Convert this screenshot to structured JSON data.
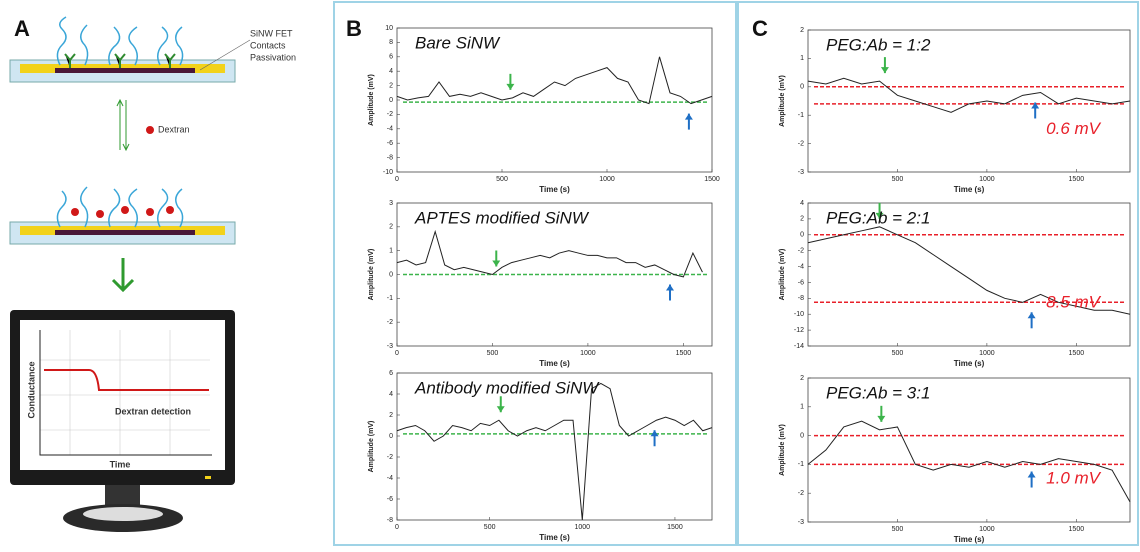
{
  "diagram": {
    "panel_a": "A",
    "panel_b": "B",
    "panel_c": "C",
    "labels": [
      "SiNW FET",
      "Contacts",
      "Passivation"
    ],
    "dextran": "Dextran",
    "monitor": {
      "ylabel": "Conductance",
      "xlabel": "Time",
      "caption": "Dextran detection"
    }
  },
  "chart_data": [
    {
      "type": "line",
      "annotation": "Bare SiNW",
      "xlabel": "Time (s)",
      "ylabel": "Amplitude (mV)",
      "x": [
        0,
        50,
        100,
        150,
        200,
        250,
        300,
        350,
        400,
        450,
        500,
        550,
        600,
        650,
        700,
        750,
        800,
        850,
        900,
        950,
        1000,
        1050,
        1100,
        1150,
        1200,
        1250,
        1300,
        1350,
        1400,
        1450,
        1500
      ],
      "values": [
        0.5,
        0,
        0.3,
        0.5,
        2.5,
        0.5,
        0.8,
        0.5,
        1,
        0.5,
        0,
        0.3,
        1,
        0.5,
        1.5,
        2.5,
        2,
        3,
        3.5,
        4,
        4.5,
        3,
        2.5,
        0,
        -0.5,
        6,
        1,
        0.5,
        -0.5,
        0,
        0.5
      ],
      "color": "#222222",
      "xlim": [
        0,
        1500
      ],
      "ylim": [
        -10,
        10
      ],
      "xticks": [
        0,
        500,
        1000,
        1500
      ],
      "yticks": [
        -10,
        -8,
        -6,
        -4,
        -2,
        0,
        2,
        4,
        6,
        8,
        10
      ],
      "hlines": [
        {
          "value": -0.3,
          "color": "#3cb44b"
        }
      ],
      "arrows": [
        {
          "x": 540,
          "color": "#3cb44b",
          "direction": "down"
        },
        {
          "x": 1390,
          "color": "#1f6fc5",
          "direction": "up"
        }
      ]
    },
    {
      "type": "line",
      "annotation": "APTES modified SiNW",
      "xlabel": "Time (s)",
      "ylabel": "Amplitude (mV)",
      "x": [
        0,
        50,
        100,
        150,
        200,
        250,
        300,
        350,
        400,
        450,
        500,
        550,
        600,
        650,
        700,
        750,
        800,
        850,
        900,
        950,
        1000,
        1050,
        1100,
        1150,
        1200,
        1250,
        1300,
        1350,
        1400,
        1450,
        1500,
        1550,
        1600
      ],
      "values": [
        0.5,
        0.6,
        0.4,
        0.5,
        1.8,
        0.4,
        0.2,
        0.3,
        0.2,
        0.1,
        0,
        0.3,
        0.5,
        0.6,
        0.7,
        0.8,
        0.7,
        0.9,
        1.0,
        0.9,
        0.8,
        0.8,
        0.7,
        0.7,
        0.5,
        0.5,
        0.3,
        0.4,
        0.2,
        0,
        -0.1,
        0.9,
        0.1
      ],
      "color": "#222222",
      "xlim": [
        0,
        1650
      ],
      "ylim": [
        -3,
        3
      ],
      "xticks": [
        0,
        500,
        1000,
        1500
      ],
      "yticks": [
        -3,
        -2,
        -1,
        0,
        1,
        2,
        3
      ],
      "hlines": [
        {
          "value": 0,
          "color": "#3cb44b"
        }
      ],
      "arrows": [
        {
          "x": 520,
          "color": "#3cb44b",
          "direction": "down"
        },
        {
          "x": 1430,
          "color": "#1f6fc5",
          "direction": "up"
        }
      ]
    },
    {
      "type": "line",
      "annotation": "Antibody modified SiNW",
      "xlabel": "Time (s)",
      "ylabel": "Amplitude (mV)",
      "x": [
        0,
        50,
        100,
        150,
        200,
        250,
        300,
        350,
        400,
        450,
        500,
        550,
        600,
        650,
        700,
        750,
        800,
        850,
        900,
        950,
        1000,
        1050,
        1100,
        1150,
        1200,
        1250,
        1300,
        1350,
        1400,
        1450,
        1500,
        1550,
        1600,
        1650,
        1700
      ],
      "values": [
        0.5,
        0.8,
        1,
        0.5,
        -0.5,
        0,
        1,
        0.8,
        0.5,
        1.2,
        1,
        1.5,
        0.5,
        0,
        0.5,
        0.8,
        0.5,
        1,
        1.5,
        1.5,
        -8,
        4.5,
        5,
        4.5,
        1,
        0,
        0.5,
        1,
        1.5,
        1.8,
        1.5,
        1,
        1.5,
        0.5,
        0.8
      ],
      "color": "#222222",
      "xlim": [
        0,
        1700
      ],
      "ylim": [
        -8,
        6
      ],
      "xticks": [
        0,
        500,
        1000,
        1500
      ],
      "yticks": [
        -8,
        -6,
        -4,
        -2,
        0,
        2,
        4,
        6
      ],
      "hlines": [
        {
          "value": 0.2,
          "color": "#3cb44b"
        }
      ],
      "arrows": [
        {
          "x": 560,
          "color": "#3cb44b",
          "direction": "down"
        },
        {
          "x": 1390,
          "color": "#1f6fc5",
          "direction": "up"
        }
      ]
    },
    {
      "type": "line",
      "annotation": "PEG:Ab = 1:2",
      "note": "0.6 mV",
      "note_color": "#e8202a",
      "xlabel": "Time (s)",
      "ylabel": "Amplitude (mV)",
      "x": [
        0,
        100,
        200,
        300,
        400,
        500,
        600,
        700,
        800,
        900,
        1000,
        1100,
        1200,
        1300,
        1400,
        1500,
        1600,
        1700,
        1800
      ],
      "values": [
        0.2,
        0.1,
        0.3,
        0.1,
        0.2,
        -0.3,
        -0.5,
        -0.7,
        -0.9,
        -0.6,
        -0.5,
        -0.6,
        -0.3,
        -0.2,
        -0.6,
        -0.4,
        -0.5,
        -0.6,
        -0.5
      ],
      "color": "#222222",
      "xlim": [
        0,
        1800
      ],
      "ylim": [
        -3,
        2
      ],
      "xticks": [
        500,
        1000,
        1500
      ],
      "yticks": [
        -3,
        -2,
        -1,
        0,
        1,
        2
      ],
      "hlines": [
        {
          "value": 0,
          "color": "#e8202a"
        },
        {
          "value": -0.6,
          "color": "#e8202a"
        }
      ],
      "arrows": [
        {
          "x": 430,
          "color": "#3cb44b",
          "direction": "down"
        },
        {
          "x": 1270,
          "color": "#1f6fc5",
          "direction": "up"
        }
      ]
    },
    {
      "type": "line",
      "annotation": "PEG:Ab = 2:1",
      "note": "8.5 mV",
      "note_color": "#e8202a",
      "xlabel": "Time (s)",
      "ylabel": "Amplitude (mV)",
      "x": [
        0,
        100,
        200,
        300,
        400,
        500,
        600,
        700,
        800,
        900,
        1000,
        1100,
        1200,
        1300,
        1400,
        1500,
        1600,
        1700,
        1800
      ],
      "values": [
        -1,
        -0.5,
        0,
        0.5,
        1,
        0,
        -1,
        -2.5,
        -4,
        -5.5,
        -7,
        -8,
        -8.5,
        -7.5,
        -8.5,
        -9,
        -9.5,
        -9.5,
        -10
      ],
      "color": "#222222",
      "xlim": [
        0,
        1800
      ],
      "ylim": [
        -14,
        4
      ],
      "xticks": [
        500,
        1000,
        1500
      ],
      "yticks": [
        -14,
        -12,
        -10,
        -8,
        -6,
        -4,
        -2,
        0,
        2,
        4
      ],
      "hlines": [
        {
          "value": 0,
          "color": "#e8202a"
        },
        {
          "value": -8.5,
          "color": "#e8202a"
        }
      ],
      "arrows": [
        {
          "x": 400,
          "color": "#3cb44b",
          "direction": "down"
        },
        {
          "x": 1250,
          "color": "#1f6fc5",
          "direction": "up"
        }
      ]
    },
    {
      "type": "line",
      "annotation": "PEG:Ab = 3:1",
      "note": "1.0 mV",
      "note_color": "#e8202a",
      "xlabel": "Time (s)",
      "ylabel": "Amplitude (mV)",
      "x": [
        0,
        100,
        200,
        300,
        400,
        500,
        600,
        700,
        800,
        900,
        1000,
        1100,
        1200,
        1300,
        1400,
        1500,
        1600,
        1700,
        1800
      ],
      "values": [
        -1,
        -0.5,
        0.3,
        0.5,
        0.2,
        0.3,
        -1,
        -1.2,
        -1.0,
        -1.1,
        -0.9,
        -1.1,
        -0.9,
        -1.0,
        -0.8,
        -0.9,
        -1.0,
        -1.2,
        -2.3
      ],
      "color": "#222222",
      "xlim": [
        0,
        1800
      ],
      "ylim": [
        -3,
        2
      ],
      "xticks": [
        500,
        1000,
        1500
      ],
      "yticks": [
        -3,
        -2,
        -1,
        0,
        1,
        2
      ],
      "hlines": [
        {
          "value": 0,
          "color": "#e8202a"
        },
        {
          "value": -1,
          "color": "#e8202a"
        }
      ],
      "arrows": [
        {
          "x": 410,
          "color": "#3cb44b",
          "direction": "down"
        },
        {
          "x": 1250,
          "color": "#1f6fc5",
          "direction": "up"
        }
      ]
    }
  ]
}
